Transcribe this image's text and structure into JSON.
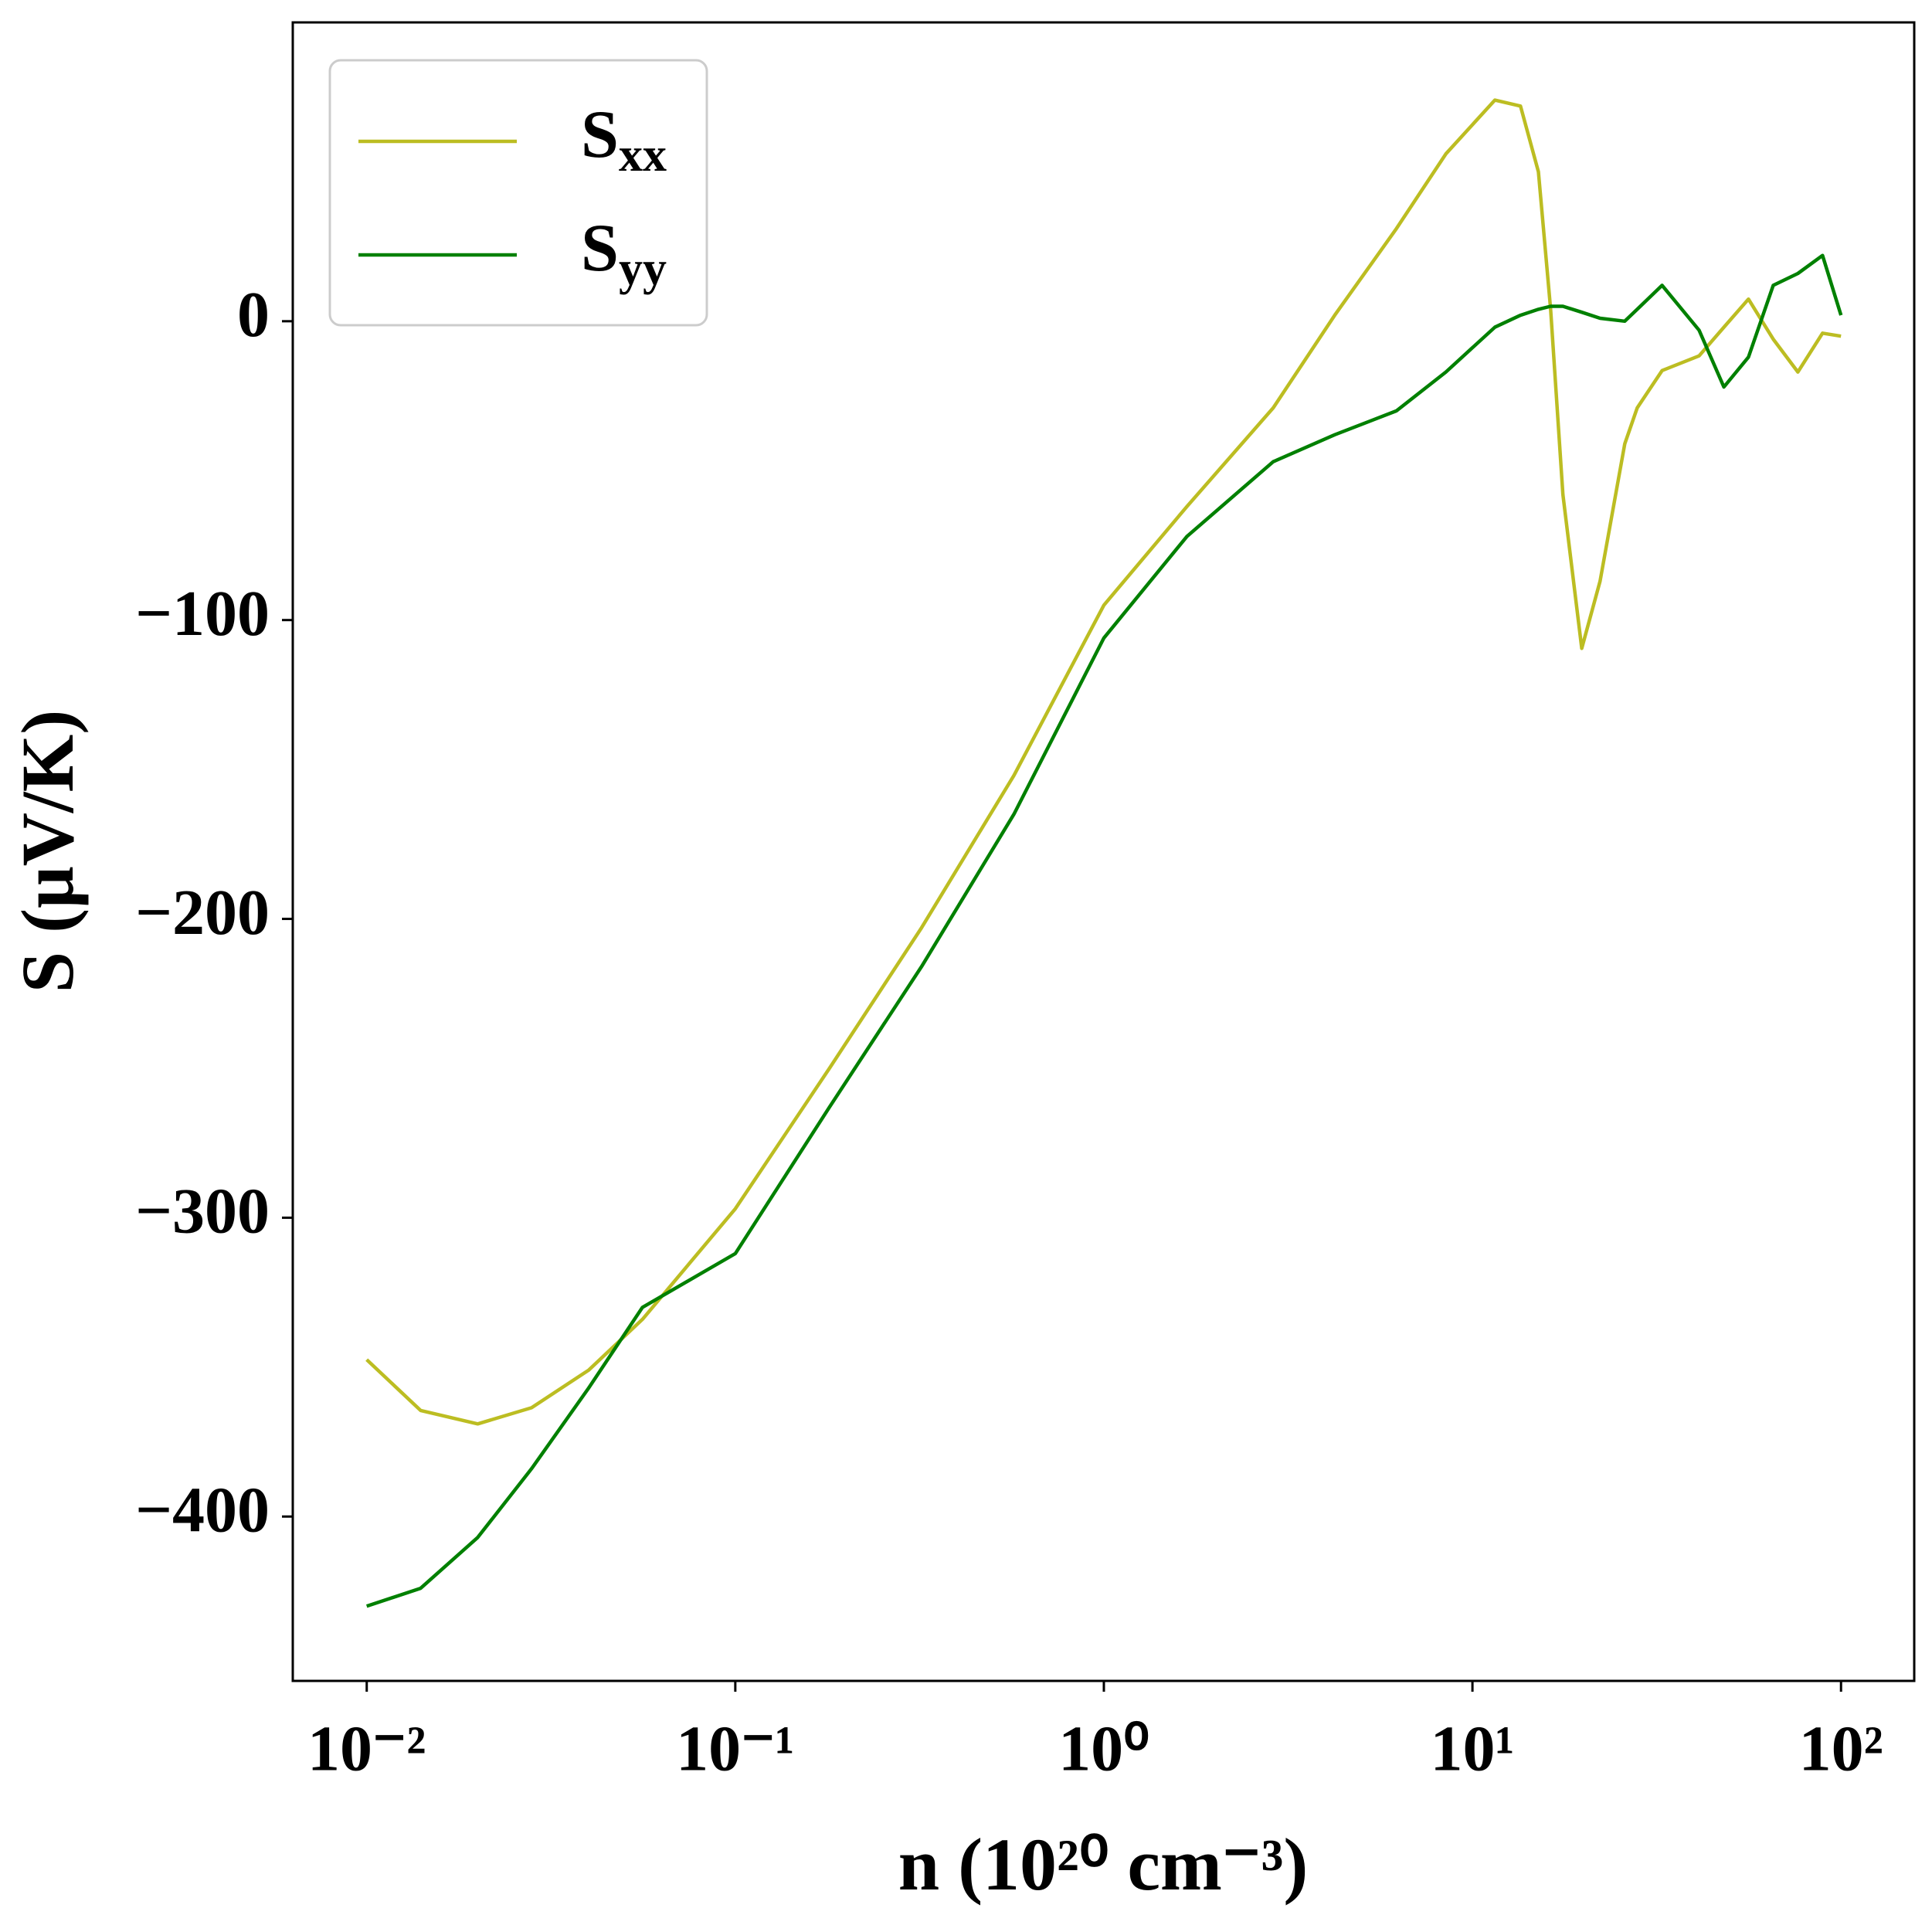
{
  "chart_data": {
    "type": "line",
    "x_label": "n (10²⁰ cm⁻³)",
    "y_label": "S (μV/K)",
    "xscale": "log",
    "legend": "upper left",
    "grid": false,
    "x": [
      0.01,
      0.014,
      0.02,
      0.028,
      0.04,
      0.056,
      0.1,
      0.18,
      0.32,
      0.57,
      1,
      1.68,
      2.88,
      4.23,
      6.22,
      8.47,
      11.5,
      13.5,
      15.1,
      16.3,
      17.6,
      19.8,
      22.2,
      25.9,
      28,
      32.7,
      41.2,
      48.1,
      56.1,
      65.5,
      76.4,
      89.1,
      100
    ],
    "series": [
      {
        "name": "Sxx",
        "color": "#bcbd22",
        "values": [
          -347.5,
          -364.5,
          -369,
          -363.6,
          -351,
          -334,
          -297,
          -250,
          -203,
          -152,
          -95,
          -62,
          -29,
          2,
          31,
          56,
          74,
          72,
          50,
          4,
          -58,
          -109.5,
          -87,
          -41,
          -29,
          -16.5,
          -11.6,
          -2,
          7.4,
          -6,
          -17,
          -4,
          -5
        ]
      },
      {
        "name": "Syy",
        "color": "#008000",
        "values": [
          -430,
          -424,
          -407,
          -384,
          -357,
          -330,
          -312,
          -263,
          -216,
          -165,
          -106,
          -72,
          -47,
          -38,
          -30,
          -17,
          -2,
          2,
          4,
          5,
          5,
          3,
          1,
          0,
          4,
          12,
          -3,
          -22,
          -12,
          12,
          16,
          22,
          2
        ]
      }
    ],
    "xlim": [
      0.0063,
      158
    ],
    "xticks": [
      {
        "value": 0.01,
        "label": "10⁻²"
      },
      {
        "value": 0.1,
        "label": "10⁻¹"
      },
      {
        "value": 1,
        "label": "10⁰"
      },
      {
        "value": 10,
        "label": "10¹"
      },
      {
        "value": 100,
        "label": "10²"
      }
    ],
    "ylim": [
      -455,
      100
    ],
    "yticks": [
      {
        "value": -400,
        "label": "−400"
      },
      {
        "value": -300,
        "label": "−300"
      },
      {
        "value": -200,
        "label": "−200"
      },
      {
        "value": -100,
        "label": "−100"
      },
      0
    ]
  }
}
